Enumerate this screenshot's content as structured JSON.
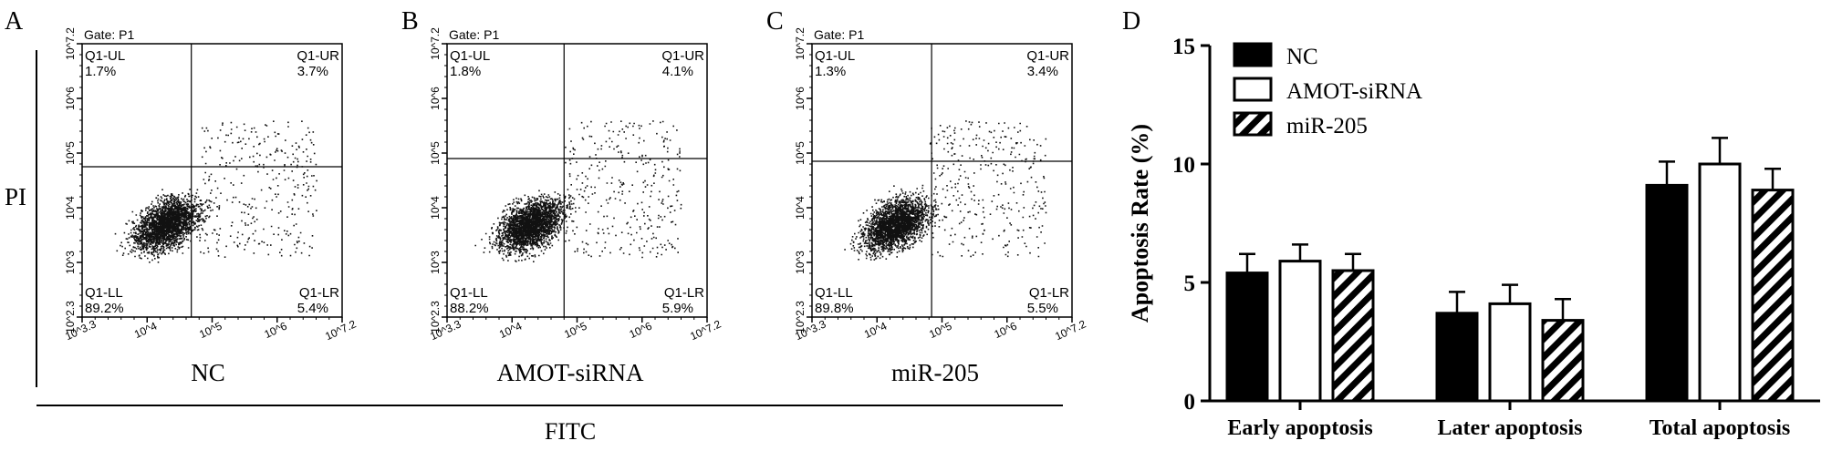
{
  "panel_letters": [
    "A",
    "B",
    "C",
    "D"
  ],
  "flow": {
    "y_axis_label": "PI",
    "x_axis_label": "FITC",
    "gate_label": "Gate: P1",
    "x_ticks": [
      "10^3.3",
      "10^4",
      "10^5",
      "10^6",
      "10^7.2"
    ],
    "y_ticks": [
      "10^2.3",
      "10^3",
      "10^4",
      "10^5",
      "10^6",
      "10^7.2"
    ],
    "panels": [
      {
        "caption": "NC",
        "ul_name": "Q1-UL",
        "ul_pct": "1.7%",
        "ur_name": "Q1-UR",
        "ur_pct": "3.7%",
        "ll_name": "Q1-LL",
        "ll_pct": "89.2%",
        "lr_name": "Q1-LR",
        "lr_pct": "5.4%"
      },
      {
        "caption": "AMOT-siRNA",
        "ul_name": "Q1-UL",
        "ul_pct": "1.8%",
        "ur_name": "Q1-UR",
        "ur_pct": "4.1%",
        "ll_name": "Q1-LL",
        "ll_pct": "88.2%",
        "lr_name": "Q1-LR",
        "lr_pct": "5.9%"
      },
      {
        "caption": "miR-205",
        "ul_name": "Q1-UL",
        "ul_pct": "1.3%",
        "ur_name": "Q1-UR",
        "ur_pct": "3.4%",
        "ll_name": "Q1-LL",
        "ll_pct": "89.8%",
        "lr_name": "Q1-LR",
        "lr_pct": "5.5%"
      }
    ]
  },
  "chart_data": {
    "type": "bar",
    "title": "",
    "xlabel": "",
    "ylabel": "Apoptosis Rate (%)",
    "ylim": [
      0,
      15
    ],
    "yticks": [
      0,
      5,
      10,
      15
    ],
    "categories": [
      "Early apoptosis",
      "Later apoptosis",
      "Total apoptosis"
    ],
    "legend_position": "top-left",
    "series": [
      {
        "name": "NC",
        "fill": "solid-black",
        "values": [
          5.4,
          3.7,
          9.1
        ],
        "errors": [
          0.8,
          0.9,
          1.0
        ]
      },
      {
        "name": "AMOT-siRNA",
        "fill": "white",
        "values": [
          5.9,
          4.1,
          10.0
        ],
        "errors": [
          0.7,
          0.8,
          1.1
        ]
      },
      {
        "name": "miR-205",
        "fill": "diagonal-hatch",
        "values": [
          5.5,
          3.4,
          8.9
        ],
        "errors": [
          0.7,
          0.9,
          0.9
        ]
      }
    ]
  },
  "colors": {
    "ink": "#000000",
    "background": "#ffffff"
  }
}
